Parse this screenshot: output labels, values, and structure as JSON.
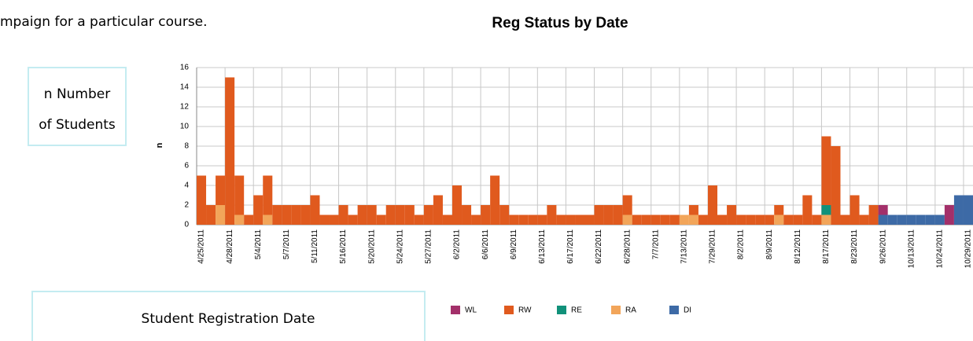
{
  "chart_data": {
    "type": "stacked_bar",
    "intro_text": "mpaign for a particular course.",
    "title": "Reg Status by Date",
    "y_label": "n",
    "y_note_lines": [
      "n Number",
      "of Students"
    ],
    "x_note": "Student Registration Date",
    "categories": [
      "4/25/2011",
      null,
      null,
      "4/28/2011",
      null,
      null,
      "5/4/2011",
      null,
      null,
      "5/7/2011",
      null,
      null,
      "5/11/2011",
      null,
      null,
      "5/16/2011",
      null,
      null,
      "5/20/2011",
      null,
      null,
      "5/24/2011",
      null,
      null,
      "5/27/2011",
      null,
      null,
      "6/2/2011",
      null,
      null,
      "6/6/2011",
      null,
      null,
      "6/9/2011",
      null,
      null,
      "6/13/2011",
      null,
      null,
      "6/17/2011",
      null,
      null,
      "6/22/2011",
      null,
      null,
      "6/28/2011",
      null,
      null,
      "7/7/2011",
      null,
      null,
      "7/13/2011",
      null,
      null,
      "7/29/2011",
      null,
      null,
      "8/2/2011",
      null,
      null,
      "8/9/2011",
      null,
      null,
      "8/12/2011",
      null,
      null,
      "8/17/2011",
      null,
      null,
      "8/23/2011",
      null,
      null,
      "9/26/2011",
      null,
      null,
      "10/13/2011",
      null,
      null,
      "10/24/2011",
      null,
      null,
      "10/29/2011"
    ],
    "series": [
      {
        "name": "WL",
        "color": "#a3306a",
        "values": [
          0,
          0,
          0,
          0,
          0,
          0,
          0,
          0,
          0,
          0,
          0,
          0,
          0,
          0,
          0,
          0,
          0,
          0,
          0,
          0,
          0,
          0,
          0,
          0,
          0,
          0,
          0,
          0,
          0,
          0,
          0,
          0,
          0,
          0,
          0,
          0,
          0,
          0,
          0,
          0,
          0,
          0,
          0,
          0,
          0,
          0,
          0,
          0,
          0,
          0,
          0,
          0,
          0,
          0,
          0,
          0,
          0,
          0,
          0,
          0,
          0,
          0,
          0,
          0,
          0,
          0,
          0,
          0,
          0,
          0,
          0,
          0,
          1,
          0,
          0,
          0,
          0,
          0,
          0,
          2,
          0,
          0
        ]
      },
      {
        "name": "RW",
        "color": "#e05a1e",
        "values": [
          5,
          2,
          3,
          15,
          4,
          1,
          3,
          4,
          2,
          2,
          2,
          2,
          3,
          1,
          1,
          2,
          1,
          2,
          2,
          1,
          2,
          2,
          2,
          1,
          2,
          3,
          1,
          4,
          2,
          1,
          2,
          5,
          2,
          1,
          1,
          1,
          1,
          2,
          1,
          1,
          1,
          1,
          2,
          2,
          2,
          2,
          1,
          1,
          1,
          1,
          1,
          0,
          1,
          1,
          4,
          1,
          2,
          1,
          1,
          1,
          1,
          1,
          1,
          1,
          3,
          1,
          7,
          8,
          1,
          3,
          1,
          2,
          0,
          0,
          0,
          0,
          0,
          0,
          0,
          0,
          0,
          0
        ]
      },
      {
        "name": "RE",
        "color": "#11917a",
        "values": [
          0,
          0,
          0,
          0,
          0,
          0,
          0,
          0,
          0,
          0,
          0,
          0,
          0,
          0,
          0,
          0,
          0,
          0,
          0,
          0,
          0,
          0,
          0,
          0,
          0,
          0,
          0,
          0,
          0,
          0,
          0,
          0,
          0,
          0,
          0,
          0,
          0,
          0,
          0,
          0,
          0,
          0,
          0,
          0,
          0,
          0,
          0,
          0,
          0,
          0,
          0,
          0,
          0,
          0,
          0,
          0,
          0,
          0,
          0,
          0,
          0,
          0,
          0,
          0,
          0,
          0,
          1,
          0,
          0,
          0,
          0,
          0,
          0,
          0,
          0,
          0,
          0,
          0,
          0,
          0,
          0,
          0
        ]
      },
      {
        "name": "RA",
        "color": "#f2a55a",
        "values": [
          0,
          0,
          2,
          0,
          1,
          0,
          0,
          1,
          0,
          0,
          0,
          0,
          0,
          0,
          0,
          0,
          0,
          0,
          0,
          0,
          0,
          0,
          0,
          0,
          0,
          0,
          0,
          0,
          0,
          0,
          0,
          0,
          0,
          0,
          0,
          0,
          0,
          0,
          0,
          0,
          0,
          0,
          0,
          0,
          0,
          1,
          0,
          0,
          0,
          0,
          0,
          1,
          1,
          0,
          0,
          0,
          0,
          0,
          0,
          0,
          0,
          1,
          0,
          0,
          0,
          0,
          1,
          0,
          0,
          0,
          0,
          0,
          0,
          0,
          0,
          0,
          0,
          0,
          0,
          0,
          0,
          0
        ]
      },
      {
        "name": "DI",
        "color": "#3d6aa6",
        "values": [
          0,
          0,
          0,
          0,
          0,
          0,
          0,
          0,
          0,
          0,
          0,
          0,
          0,
          0,
          0,
          0,
          0,
          0,
          0,
          0,
          0,
          0,
          0,
          0,
          0,
          0,
          0,
          0,
          0,
          0,
          0,
          0,
          0,
          0,
          0,
          0,
          0,
          0,
          0,
          0,
          0,
          0,
          0,
          0,
          0,
          0,
          0,
          0,
          0,
          0,
          0,
          0,
          0,
          0,
          0,
          0,
          0,
          0,
          0,
          0,
          0,
          0,
          0,
          0,
          0,
          0,
          0,
          0,
          0,
          0,
          0,
          0,
          1,
          1,
          1,
          1,
          1,
          1,
          1,
          0,
          3,
          3
        ]
      }
    ],
    "ylim": [
      0,
      16
    ],
    "yticks": [
      0,
      2,
      4,
      6,
      8,
      10,
      12,
      14,
      16
    ],
    "grid": true
  }
}
